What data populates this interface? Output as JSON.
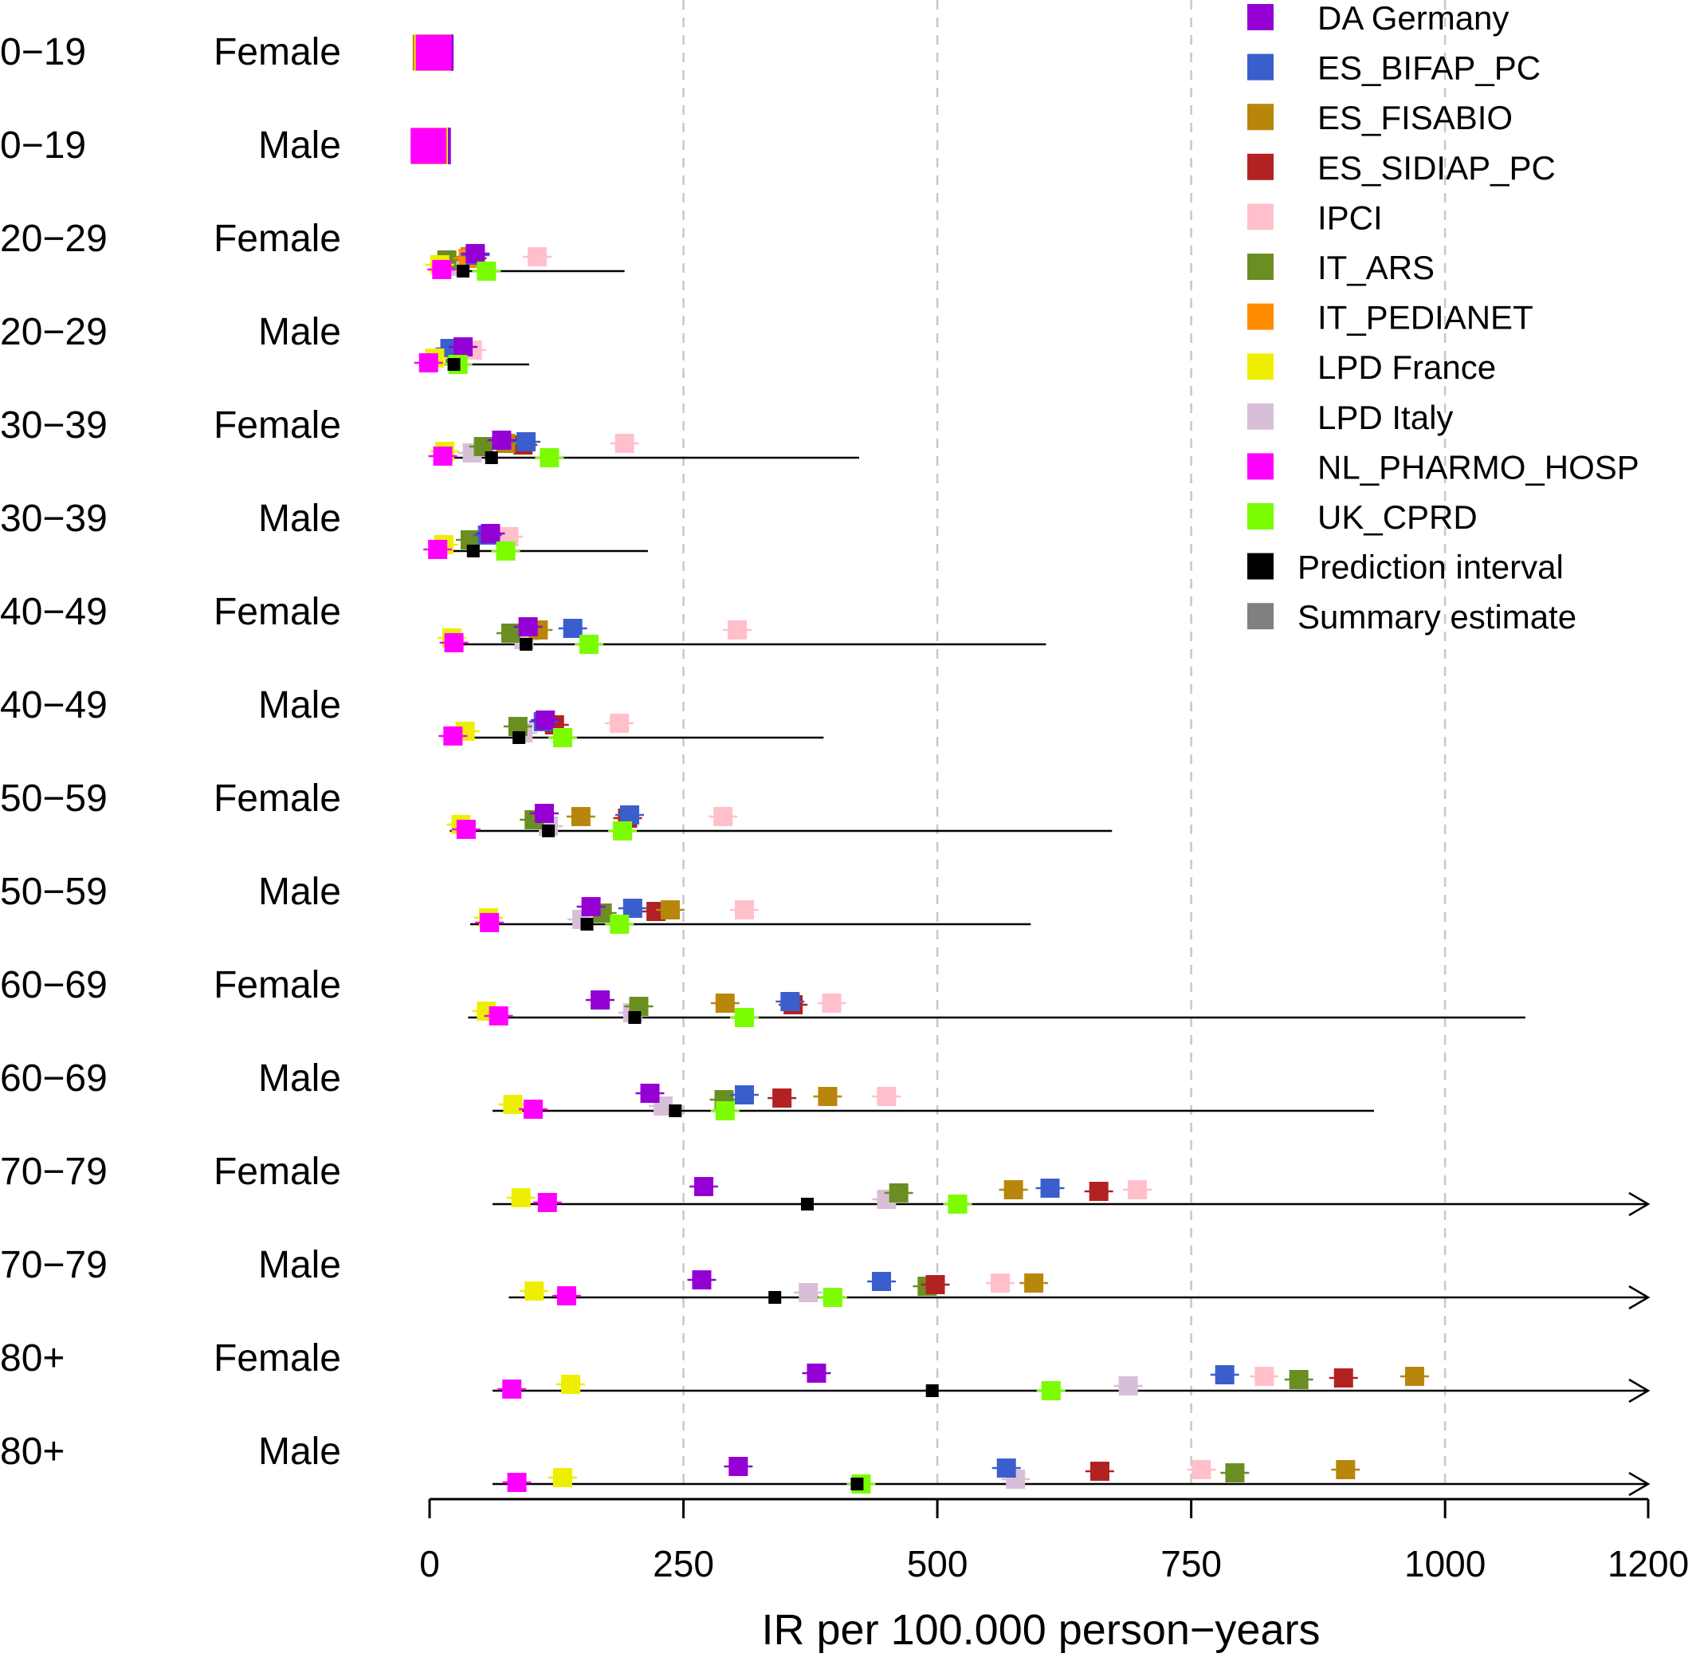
{
  "chart_data": {
    "type": "forest",
    "title": "",
    "xlabel": "IR per 100.000 person−years",
    "xlim": [
      0,
      1200
    ],
    "xticks": [
      0,
      250,
      500,
      750,
      1000,
      1200
    ],
    "xtick_labels": [
      "0",
      "250",
      "500",
      "750",
      "1000",
      "1200"
    ],
    "grid": "dashed vertical at 250, 500, 750, 1000",
    "legend": "top-right",
    "legend_entries": [
      {
        "name": "DA Germany",
        "color": "#9400D3"
      },
      {
        "name": "ES_BIFAP_PC",
        "color": "#3A5FCD"
      },
      {
        "name": "ES_FISABIO",
        "color": "#B8860B"
      },
      {
        "name": "ES_SIDIAP_PC",
        "color": "#B22222"
      },
      {
        "name": "IPCI",
        "color": "#FFC0CB"
      },
      {
        "name": "IT_ARS",
        "color": "#6B8E23"
      },
      {
        "name": "IT_PEDIANET",
        "color": "#FF8C00"
      },
      {
        "name": "LPD France",
        "color": "#EEEE00"
      },
      {
        "name": "LPD Italy",
        "color": "#D8BFD8"
      },
      {
        "name": "NL_PHARMO_HOSP",
        "color": "#FF00FF"
      },
      {
        "name": "UK_CPRD",
        "color": "#7CFC00"
      },
      {
        "name": "Prediction interval",
        "color": "#000000"
      },
      {
        "name": "Summary estimate",
        "color": "#808080"
      }
    ],
    "rows": [
      {
        "age": "0−19",
        "sex": "Female",
        "estimates": {
          "DA Germany": 6,
          "ES_BIFAP_PC": 5,
          "ES_FISABIO": 1,
          "IT_PEDIANET": 2,
          "LPD France": 3,
          "NL_PHARMO_HOSP": 4
        },
        "prediction_interval": null,
        "summary": null
      },
      {
        "age": "0−19",
        "sex": "Male",
        "estimates": {
          "DA Germany": 3,
          "ES_BIFAP_PC": 3,
          "LPD France": 0,
          "NL_PHARMO_HOSP": -1
        },
        "prediction_interval": null,
        "summary": null
      },
      {
        "age": "20−29",
        "sex": "Female",
        "estimates": {
          "DA Germany": 45,
          "ES_BIFAP_PC": 45,
          "ES_FISABIO": 40,
          "ES_SIDIAP_PC": 42,
          "IPCI": 106,
          "IT_ARS": 17,
          "IT_PEDIANET": 38,
          "LPD France": 10,
          "LPD Italy": 25,
          "NL_PHARMO_HOSP": 12,
          "UK_CPRD": 56
        },
        "prediction_interval": [
          5,
          192
        ],
        "summary": 33
      },
      {
        "age": "20−29",
        "sex": "Male",
        "estimates": {
          "DA Germany": 33,
          "ES_BIFAP_PC": 20,
          "IPCI": 42,
          "IT_ARS": 25,
          "LPD France": 5,
          "NL_PHARMO_HOSP": -1,
          "UK_CPRD": 28
        },
        "prediction_interval": [
          5,
          98
        ],
        "summary": 24
      },
      {
        "age": "30−39",
        "sex": "Female",
        "estimates": {
          "DA Germany": 71,
          "ES_BIFAP_PC": 95,
          "ES_FISABIO": 75,
          "ES_SIDIAP_PC": 92,
          "IPCI": 192,
          "IT_ARS": 53,
          "LPD France": 15,
          "LPD Italy": 42,
          "NL_PHARMO_HOSP": 13,
          "UK_CPRD": 118
        },
        "prediction_interval": [
          10,
          423
        ],
        "summary": 61
      },
      {
        "age": "30−39",
        "sex": "Male",
        "estimates": {
          "DA Germany": 60,
          "ES_BIFAP_PC": 57,
          "IPCI": 78,
          "IT_ARS": 40,
          "LPD France": 14,
          "NL_PHARMO_HOSP": 8,
          "UK_CPRD": 75
        },
        "prediction_interval": [
          8,
          215
        ],
        "summary": 43
      },
      {
        "age": "40−49",
        "sex": "Female",
        "estimates": {
          "DA Germany": 97,
          "ES_BIFAP_PC": 141,
          "ES_FISABIO": 107,
          "IPCI": 303,
          "IT_ARS": 80,
          "LPD France": 22,
          "LPD Italy": 93,
          "NL_PHARMO_HOSP": 24,
          "UK_CPRD": 157
        },
        "prediction_interval": [
          18,
          607
        ],
        "summary": 95
      },
      {
        "age": "40−49",
        "sex": "Male",
        "estimates": {
          "DA Germany": 114,
          "ES_BIFAP_PC": 112,
          "ES_SIDIAP_PC": 123,
          "IPCI": 187,
          "IT_ARS": 87,
          "LPD France": 35,
          "LPD Italy": 92,
          "NL_PHARMO_HOSP": 23,
          "UK_CPRD": 131
        },
        "prediction_interval": [
          18,
          388
        ],
        "summary": 88
      },
      {
        "age": "50−59",
        "sex": "Female",
        "estimates": {
          "DA Germany": 113,
          "ES_BIFAP_PC": 197,
          "ES_FISABIO": 149,
          "ES_SIDIAP_PC": 195,
          "IPCI": 289,
          "IT_ARS": 103,
          "LPD France": 31,
          "LPD Italy": 117,
          "NL_PHARMO_HOSP": 36,
          "UK_CPRD": 190
        },
        "prediction_interval": [
          20,
          672
        ],
        "summary": 117
      },
      {
        "age": "50−59",
        "sex": "Male",
        "estimates": {
          "DA Germany": 159,
          "ES_BIFAP_PC": 200,
          "ES_FISABIO": 237,
          "ES_SIDIAP_PC": 223,
          "IPCI": 310,
          "IT_ARS": 170,
          "LPD France": 58,
          "LPD Italy": 150,
          "NL_PHARMO_HOSP": 59,
          "UK_CPRD": 187
        },
        "prediction_interval": [
          40,
          592
        ],
        "summary": 155
      },
      {
        "age": "60−69",
        "sex": "Female",
        "estimates": {
          "DA Germany": 168,
          "ES_BIFAP_PC": 355,
          "ES_FISABIO": 291,
          "ES_SIDIAP_PC": 358,
          "IPCI": 396,
          "IT_ARS": 206,
          "LPD France": 56,
          "LPD Italy": 200,
          "NL_PHARMO_HOSP": 68,
          "UK_CPRD": 310
        },
        "prediction_interval": [
          38,
          1079
        ],
        "summary": 202
      },
      {
        "age": "60−69",
        "sex": "Male",
        "estimates": {
          "DA Germany": 217,
          "ES_BIFAP_PC": 310,
          "ES_FISABIO": 392,
          "ES_SIDIAP_PC": 347,
          "IPCI": 450,
          "IT_ARS": 290,
          "LPD France": 82,
          "LPD Italy": 230,
          "NL_PHARMO_HOSP": 102,
          "UK_CPRD": 291
        },
        "prediction_interval": [
          62,
          930
        ],
        "summary": 242
      },
      {
        "age": "70−79",
        "sex": "Female",
        "estimates": {
          "DA Germany": 270,
          "ES_BIFAP_PC": 611,
          "ES_FISABIO": 575,
          "ES_SIDIAP_PC": 659,
          "IPCI": 697,
          "IT_ARS": 462,
          "LPD France": 90,
          "LPD Italy": 450,
          "NL_PHARMO_HOSP": 116,
          "UK_CPRD": 520
        },
        "prediction_interval": [
          62,
          1200
        ],
        "summary": 372
      },
      {
        "age": "70−79",
        "sex": "Male",
        "estimates": {
          "DA Germany": 268,
          "ES_BIFAP_PC": 445,
          "ES_FISABIO": 595,
          "ES_SIDIAP_PC": 498,
          "IPCI": 562,
          "IT_ARS": 490,
          "LPD France": 103,
          "LPD Italy": 373,
          "NL_PHARMO_HOSP": 135,
          "UK_CPRD": 397
        },
        "prediction_interval": [
          78,
          1200
        ],
        "summary": 340
      },
      {
        "age": "80+",
        "sex": "Female",
        "estimates": {
          "DA Germany": 381,
          "ES_BIFAP_PC": 783,
          "ES_FISABIO": 970,
          "ES_SIDIAP_PC": 900,
          "IPCI": 822,
          "IT_ARS": 856,
          "LPD France": 139,
          "LPD Italy": 688,
          "NL_PHARMO_HOSP": 81,
          "UK_CPRD": 612
        },
        "prediction_interval": [
          62,
          1200
        ],
        "summary": 495
      },
      {
        "age": "80+",
        "sex": "Male",
        "estimates": {
          "DA Germany": 304,
          "ES_BIFAP_PC": 568,
          "ES_FISABIO": 902,
          "ES_SIDIAP_PC": 660,
          "IPCI": 760,
          "IT_ARS": 793,
          "LPD France": 131,
          "LPD Italy": 577,
          "NL_PHARMO_HOSP": 86,
          "UK_CPRD": 425
        },
        "prediction_interval": [
          62,
          1200
        ],
        "summary": 421
      }
    ]
  }
}
